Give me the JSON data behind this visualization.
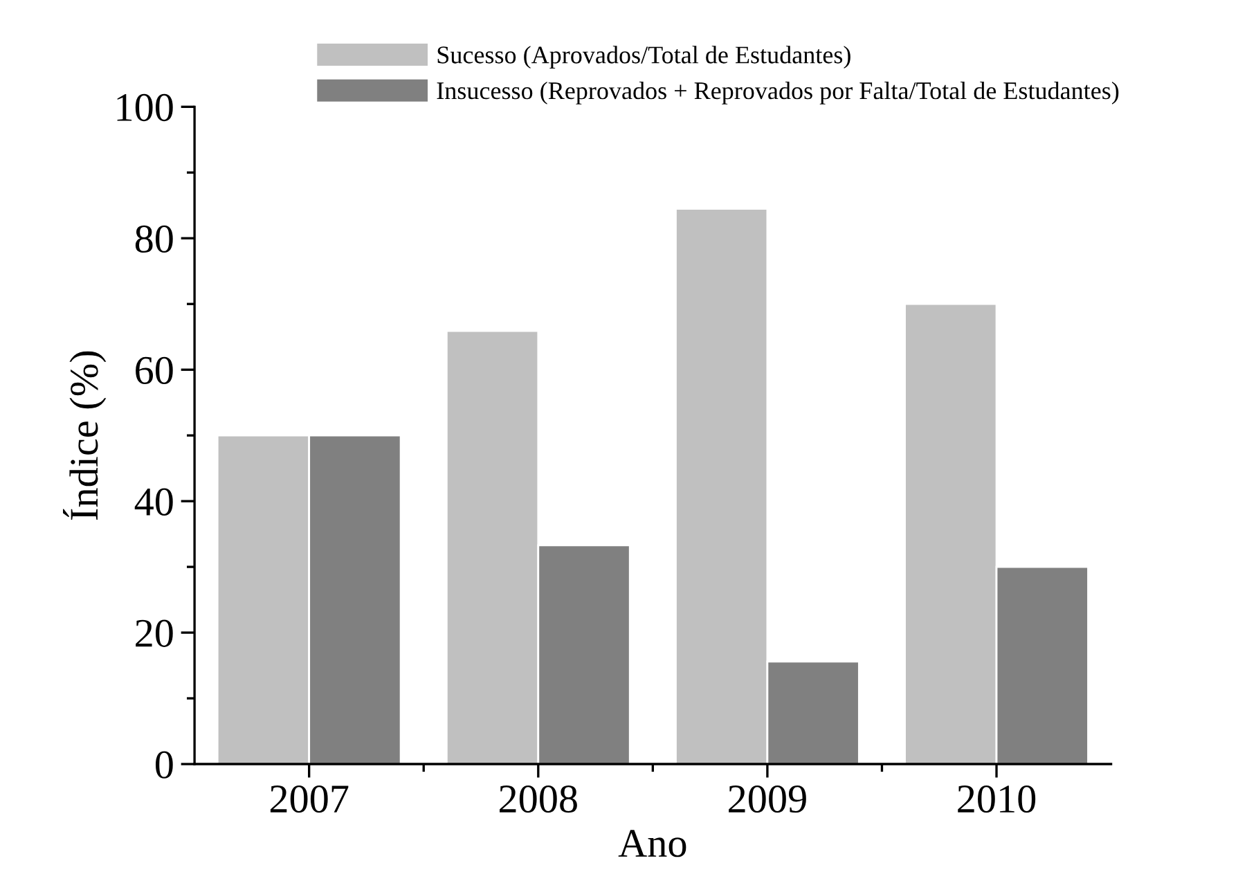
{
  "chart_data": {
    "type": "bar",
    "xlabel": "Ano",
    "ylabel": "Índice (%)",
    "categories": [
      "2007",
      "2008",
      "2009",
      "2010"
    ],
    "series": [
      {
        "name": "Sucesso (Aprovados/Total de Estudantes)",
        "color": "#c0c0c0",
        "values": [
          50,
          65.9,
          84.5,
          70
        ]
      },
      {
        "name": "Insucesso (Reprovados + Reprovados por Falta/Total de Estudantes)",
        "color": "#808080",
        "values": [
          50,
          33.3,
          15.6,
          30
        ]
      }
    ],
    "ylim": [
      0,
      100
    ],
    "yticks": [
      0,
      20,
      40,
      60,
      80,
      100
    ],
    "grid": false,
    "legend": "top"
  }
}
